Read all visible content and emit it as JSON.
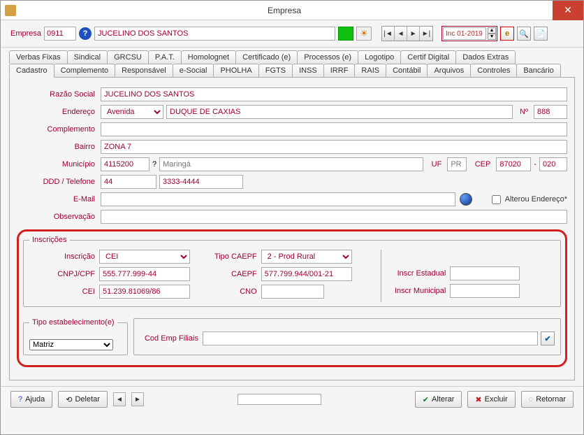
{
  "window": {
    "title": "Empresa"
  },
  "topbar": {
    "empresa_label": "Empresa",
    "empresa_code": "0911",
    "empresa_name": "JUCELINO DOS SANTOS",
    "period": "Inc 01-2019"
  },
  "tabs_row1": [
    "Verbas Fixas",
    "Sindical",
    "GRCSU",
    "P.A.T.",
    "Homolognet",
    "Certificado (e)",
    "Processos (e)",
    "Logotipo",
    "Certif Digital",
    "Dados Extras"
  ],
  "tabs_row2": [
    "Cadastro",
    "Complemento",
    "Responsável",
    "e-Social",
    "PHOLHA",
    "FGTS",
    "INSS",
    "IRRF",
    "RAIS",
    "Contábil",
    "Arquivos",
    "Controles",
    "Bancário"
  ],
  "active_tab": "Cadastro",
  "form": {
    "razao_label": "Razão Social",
    "razao": "JUCELINO DOS SANTOS",
    "endereco_label": "Endereço",
    "endereco_tipo": "Avenida",
    "endereco": "DUQUE DE CAXIAS",
    "numero_label": "Nº",
    "numero": "888",
    "complemento_label": "Complemento",
    "complemento": "",
    "bairro_label": "Bairro",
    "bairro": "ZONA 7",
    "municipio_label": "Município",
    "municipio_cod": "4115200",
    "municipio_nome": "Maringá",
    "uf_label": "UF",
    "uf": "PR",
    "cep_label": "CEP",
    "cep1": "87020",
    "cep_sep": "-",
    "cep2": "020",
    "ddd_label": "DDD / Telefone",
    "ddd": "44",
    "telefone": "3333-4444",
    "email_label": "E-Mail",
    "email": "",
    "alterou_label": "Alterou Endereço*",
    "obs_label": "Observação",
    "obs": ""
  },
  "inscricoes": {
    "legend": "Inscrições",
    "inscricao_label": "Inscrição",
    "inscricao": "CEI",
    "tipo_caepf_label": "Tipo CAEPF",
    "tipo_caepf": "2 - Prod Rural",
    "cnpj_label": "CNPJ/CPF",
    "cnpj": "555.777.999-44",
    "caepf_label": "CAEPF",
    "caepf": "577.799.944/001-21",
    "cei_label": "CEI",
    "cei": "51.239.81069/86",
    "cno_label": "CNO",
    "cno": "",
    "inscr_est_label": "Inscr Estadual",
    "inscr_est": "",
    "inscr_mun_label": "Inscr Municipal",
    "inscr_mun": ""
  },
  "tipo_estab": {
    "legend": "Tipo estabelecimento(e)",
    "value": "Matriz",
    "cod_filiais_label": "Cod Emp Filiais",
    "cod_filiais": ""
  },
  "buttons": {
    "ajuda": "Ajuda",
    "deletar": "Deletar",
    "alterar": "Alterar",
    "excluir": "Excluir",
    "retornar": "Retornar"
  }
}
